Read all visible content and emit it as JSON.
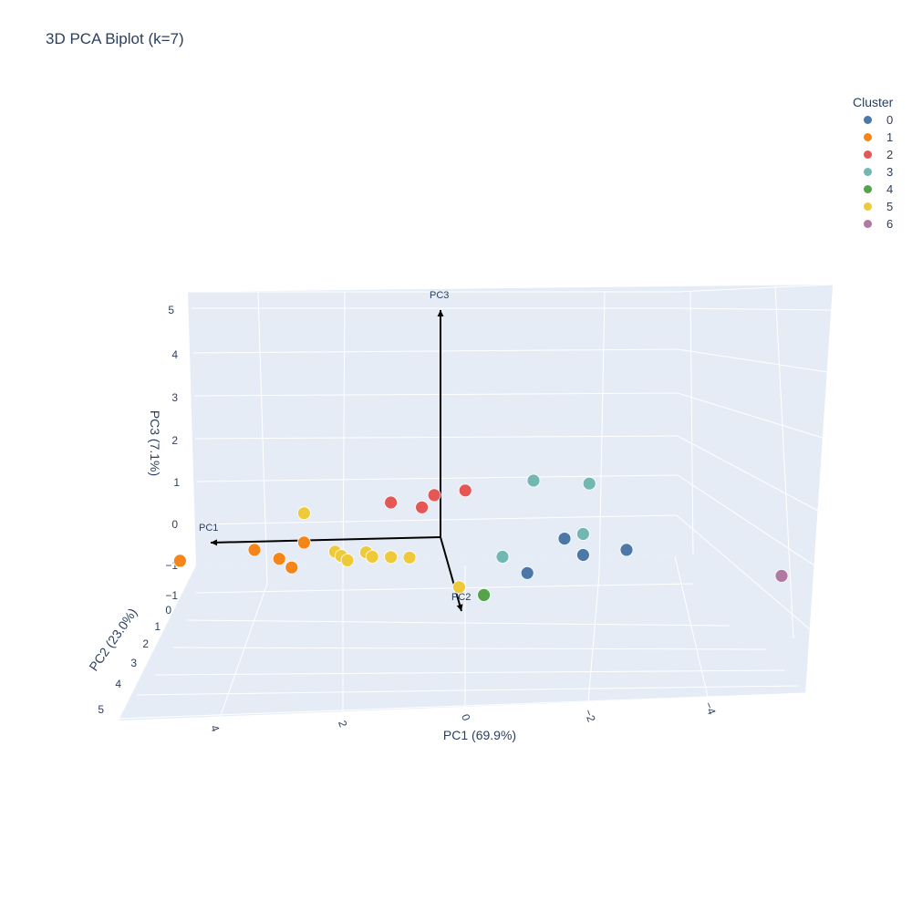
{
  "chart_data": {
    "type": "scatter3d",
    "title": "3D PCA Biplot (k=7)",
    "legend": {
      "title": "Cluster",
      "placement": "top-right"
    },
    "axes": {
      "x": {
        "label": "PC1 (69.9%)",
        "ticks": [
          "4",
          "2",
          "0",
          "−2",
          "−4"
        ]
      },
      "y": {
        "label": "PC2 (23.0%)",
        "ticks": [
          "0",
          "1",
          "2",
          "3",
          "4",
          "5"
        ]
      },
      "z": {
        "label": "PC3 (7.1%)",
        "ticks": [
          "−1",
          "−1",
          "0",
          "1",
          "2",
          "3",
          "4",
          "5"
        ]
      }
    },
    "arrows": [
      "PC1",
      "PC2",
      "PC3"
    ],
    "series": [
      {
        "name": "0",
        "color": "#4c78a8",
        "points": [
          [
            -2.0,
            1.5,
            -0.1
          ],
          [
            -2.3,
            1.5,
            -0.5
          ],
          [
            -3.0,
            1.5,
            -0.4
          ],
          [
            -1.4,
            1.5,
            -0.9
          ]
        ]
      },
      {
        "name": "1",
        "color": "#f58518",
        "points": [
          [
            3.0,
            1.5,
            -0.4
          ],
          [
            2.6,
            1.5,
            -0.6
          ],
          [
            2.4,
            1.5,
            -0.8
          ],
          [
            2.2,
            1.5,
            -0.2
          ],
          [
            4.2,
            1.5,
            -0.7
          ]
        ]
      },
      {
        "name": "2",
        "color": "#e45756",
        "points": [
          [
            0.1,
            1.5,
            1.0
          ],
          [
            0.8,
            1.5,
            0.8
          ],
          [
            0.3,
            1.5,
            0.7
          ],
          [
            -0.4,
            1.5,
            1.1
          ]
        ]
      },
      {
        "name": "3",
        "color": "#72b7b2",
        "points": [
          [
            -1.5,
            1.5,
            1.3
          ],
          [
            -2.4,
            1.5,
            1.2
          ],
          [
            -2.3,
            1.5,
            0.0
          ],
          [
            -1.0,
            1.5,
            -0.5
          ]
        ]
      },
      {
        "name": "4",
        "color": "#54a24b",
        "points": [
          [
            -0.7,
            1.5,
            -1.4
          ]
        ]
      },
      {
        "name": "5",
        "color": "#eeca3b",
        "points": [
          [
            2.2,
            1.5,
            0.5
          ],
          [
            1.7,
            1.5,
            -0.4
          ],
          [
            1.6,
            1.5,
            -0.5
          ],
          [
            1.5,
            1.5,
            -0.6
          ],
          [
            1.2,
            1.5,
            -0.4
          ],
          [
            1.1,
            1.5,
            -0.5
          ],
          [
            0.8,
            1.5,
            -0.5
          ],
          [
            0.5,
            1.5,
            -0.5
          ],
          [
            -0.3,
            1.5,
            -1.2
          ]
        ]
      },
      {
        "name": "6",
        "color": "#b279a2",
        "points": [
          [
            -5.5,
            1.5,
            -1.1
          ]
        ]
      }
    ]
  }
}
